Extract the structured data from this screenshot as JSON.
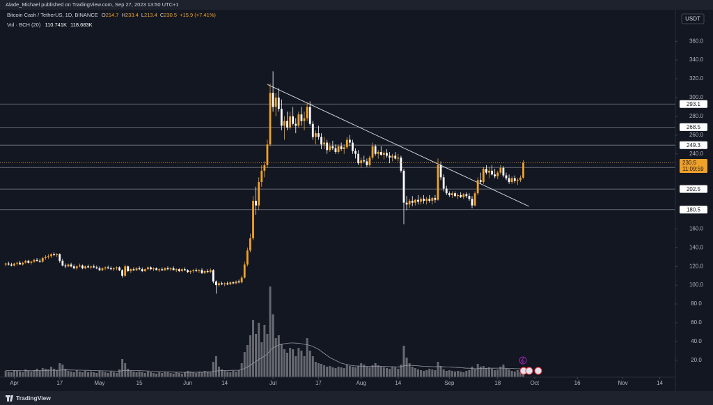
{
  "page": {
    "publisher_line": "Alade_Michael published on TradingView.com, Sep 27, 2023 13:50 UTC+1",
    "brand": "TradingView",
    "currency": "USDT"
  },
  "chart_data": {
    "type": "candlestick",
    "legend": {
      "symbol": "Bitcoin Cash / TetherUS, 1D, BINANCE",
      "ohlc_letters": [
        "O",
        "H",
        "L",
        "C"
      ],
      "change": "+15.9 (+7.41%)",
      "volume_title": "Vol · BCH (20)",
      "volume_label": "110.741K",
      "volume_ma_label": "118.683K"
    },
    "up_color": "#f0a12a",
    "down_color": "#ffffff",
    "volume_up_color": "rgba(170,170,175,0.55)",
    "volume_down_color": "rgba(210,210,215,0.45)",
    "ma_color": "#9598a1",
    "level_color": "#787b86",
    "trendline_color": "#d1d4dc",
    "xlim": [
      -2,
      235
    ],
    "ylim": [
      2,
      404
    ],
    "volume_lim": [
      0,
      1400
    ],
    "xticks": [
      {
        "value": 3,
        "label": "Apr"
      },
      {
        "value": 19,
        "label": "17"
      },
      {
        "value": 33,
        "label": "May"
      },
      {
        "value": 47,
        "label": "15"
      },
      {
        "value": 64,
        "label": "Jun"
      },
      {
        "value": 77,
        "label": "14"
      },
      {
        "value": 94,
        "label": "Jul"
      },
      {
        "value": 110,
        "label": "17"
      },
      {
        "value": 125,
        "label": "Aug"
      },
      {
        "value": 138,
        "label": "14"
      },
      {
        "value": 156,
        "label": "Sep"
      },
      {
        "value": 173,
        "label": "18"
      },
      {
        "value": 186,
        "label": "Oct"
      },
      {
        "value": 201,
        "label": "16"
      },
      {
        "value": 217,
        "label": "Nov"
      },
      {
        "value": 230,
        "label": "14"
      }
    ],
    "yticks": [
      {
        "value": 20,
        "label": "20.0"
      },
      {
        "value": 40,
        "label": "40.0"
      },
      {
        "value": 60,
        "label": "60.0"
      },
      {
        "value": 80,
        "label": "80.0"
      },
      {
        "value": 100,
        "label": "100.0"
      },
      {
        "value": 120,
        "label": "120.0"
      },
      {
        "value": 140,
        "label": "140.0"
      },
      {
        "value": 160,
        "label": "160.0"
      },
      {
        "value": 240,
        "label": "240.0"
      },
      {
        "value": 260,
        "label": "260.0"
      },
      {
        "value": 280,
        "label": "280.0"
      },
      {
        "value": 300,
        "label": "300.0"
      },
      {
        "value": 320,
        "label": "320.0"
      },
      {
        "value": 340,
        "label": "340.0"
      },
      {
        "value": 360,
        "label": "360.0"
      }
    ],
    "levels": [
      293.1,
      268.5,
      249.3,
      225.5,
      202.5,
      180.5
    ],
    "countdown": "11:09:59",
    "trendline": {
      "x": [
        92,
        184
      ],
      "y": [
        314,
        184
      ]
    },
    "candles": [
      [
        122,
        124,
        120,
        123
      ],
      [
        123,
        125,
        121,
        122
      ],
      [
        122,
        124,
        120,
        121
      ],
      [
        121,
        124,
        120,
        123
      ],
      [
        123,
        125,
        121,
        124
      ],
      [
        124,
        126,
        122,
        122
      ],
      [
        122,
        125,
        121,
        124
      ],
      [
        124,
        127,
        123,
        126
      ],
      [
        126,
        127,
        123,
        124
      ],
      [
        124,
        126,
        122,
        125
      ],
      [
        125,
        128,
        124,
        127
      ],
      [
        127,
        129,
        125,
        126
      ],
      [
        126,
        128,
        124,
        125
      ],
      [
        125,
        130,
        124,
        129
      ],
      [
        129,
        132,
        127,
        130
      ],
      [
        130,
        133,
        128,
        131
      ],
      [
        131,
        134,
        129,
        133
      ],
      [
        133,
        135,
        131,
        132
      ],
      [
        132,
        134,
        130,
        133
      ],
      [
        133,
        134,
        124,
        126
      ],
      [
        126,
        128,
        120,
        121
      ],
      [
        121,
        123,
        118,
        120
      ],
      [
        120,
        123,
        119,
        122
      ],
      [
        122,
        124,
        119,
        120
      ],
      [
        120,
        122,
        117,
        118
      ],
      [
        118,
        121,
        116,
        120
      ],
      [
        120,
        123,
        119,
        121
      ],
      [
        121,
        122,
        117,
        118
      ],
      [
        118,
        121,
        117,
        120
      ],
      [
        120,
        122,
        118,
        119
      ],
      [
        119,
        121,
        117,
        120
      ],
      [
        120,
        122,
        118,
        119
      ],
      [
        119,
        121,
        117,
        118
      ],
      [
        118,
        120,
        115,
        116
      ],
      [
        116,
        119,
        115,
        118
      ],
      [
        118,
        120,
        116,
        119
      ],
      [
        119,
        121,
        117,
        118
      ],
      [
        118,
        120,
        116,
        117
      ],
      [
        117,
        119,
        115,
        118
      ],
      [
        118,
        120,
        116,
        119
      ],
      [
        119,
        120,
        115,
        116
      ],
      [
        116,
        117,
        108,
        110
      ],
      [
        110,
        122,
        109,
        120
      ],
      [
        120,
        121,
        114,
        115
      ],
      [
        115,
        118,
        113,
        117
      ],
      [
        117,
        119,
        115,
        116
      ],
      [
        116,
        119,
        115,
        118
      ],
      [
        118,
        120,
        116,
        117
      ],
      [
        117,
        119,
        114,
        115
      ],
      [
        115,
        118,
        114,
        117
      ],
      [
        117,
        120,
        116,
        119
      ],
      [
        119,
        120,
        116,
        117
      ],
      [
        117,
        119,
        115,
        118
      ],
      [
        118,
        119,
        116,
        116
      ],
      [
        116,
        118,
        114,
        117
      ],
      [
        117,
        119,
        115,
        116
      ],
      [
        116,
        119,
        115,
        118
      ],
      [
        118,
        120,
        116,
        117
      ],
      [
        117,
        119,
        115,
        118
      ],
      [
        118,
        120,
        116,
        116
      ],
      [
        116,
        118,
        114,
        117
      ],
      [
        117,
        118,
        114,
        115
      ],
      [
        115,
        118,
        114,
        117
      ],
      [
        117,
        119,
        115,
        116
      ],
      [
        116,
        117,
        113,
        114
      ],
      [
        114,
        116,
        112,
        115
      ],
      [
        115,
        117,
        113,
        116
      ],
      [
        116,
        118,
        114,
        115
      ],
      [
        115,
        117,
        113,
        116
      ],
      [
        116,
        118,
        112,
        113
      ],
      [
        113,
        116,
        112,
        115
      ],
      [
        115,
        117,
        113,
        114
      ],
      [
        114,
        118,
        113,
        116
      ],
      [
        116,
        117,
        102,
        104
      ],
      [
        104,
        105,
        91,
        100
      ],
      [
        100,
        104,
        98,
        102
      ],
      [
        102,
        104,
        100,
        101
      ],
      [
        101,
        103,
        99,
        102
      ],
      [
        102,
        104,
        100,
        101
      ],
      [
        101,
        104,
        100,
        103
      ],
      [
        103,
        104,
        101,
        102
      ],
      [
        102,
        105,
        101,
        104
      ],
      [
        104,
        106,
        102,
        103
      ],
      [
        103,
        110,
        102,
        108
      ],
      [
        108,
        125,
        107,
        122
      ],
      [
        122,
        140,
        120,
        137
      ],
      [
        137,
        155,
        135,
        150
      ],
      [
        150,
        195,
        148,
        190
      ],
      [
        190,
        205,
        175,
        185
      ],
      [
        185,
        215,
        180,
        210
      ],
      [
        210,
        228,
        205,
        222
      ],
      [
        222,
        232,
        215,
        228
      ],
      [
        228,
        255,
        225,
        250
      ],
      [
        250,
        315,
        248,
        305
      ],
      [
        305,
        328,
        285,
        290
      ],
      [
        290,
        305,
        280,
        300
      ],
      [
        300,
        310,
        285,
        288
      ],
      [
        288,
        298,
        265,
        270
      ],
      [
        270,
        280,
        255,
        275
      ],
      [
        275,
        285,
        265,
        268
      ],
      [
        268,
        285,
        266,
        280
      ],
      [
        280,
        290,
        270,
        272
      ],
      [
        272,
        278,
        262,
        270
      ],
      [
        270,
        285,
        268,
        282
      ],
      [
        282,
        290,
        270,
        275
      ],
      [
        275,
        285,
        265,
        278
      ],
      [
        278,
        295,
        275,
        290
      ],
      [
        290,
        296,
        270,
        272
      ],
      [
        272,
        275,
        255,
        258
      ],
      [
        258,
        265,
        250,
        262
      ],
      [
        262,
        270,
        255,
        258
      ],
      [
        258,
        262,
        245,
        250
      ],
      [
        250,
        258,
        245,
        252
      ],
      [
        252,
        255,
        240,
        244
      ],
      [
        244,
        252,
        242,
        248
      ],
      [
        248,
        254,
        244,
        246
      ],
      [
        246,
        250,
        240,
        242
      ],
      [
        242,
        250,
        240,
        248
      ],
      [
        248,
        252,
        243,
        245
      ],
      [
        245,
        250,
        240,
        247
      ],
      [
        247,
        258,
        245,
        255
      ],
      [
        255,
        260,
        248,
        252
      ],
      [
        252,
        255,
        240,
        243
      ],
      [
        243,
        246,
        235,
        240
      ],
      [
        240,
        244,
        228,
        230
      ],
      [
        230,
        236,
        225,
        233
      ],
      [
        233,
        238,
        230,
        232
      ],
      [
        232,
        235,
        226,
        228
      ],
      [
        228,
        238,
        226,
        236
      ],
      [
        236,
        252,
        234,
        248
      ],
      [
        248,
        250,
        238,
        240
      ],
      [
        240,
        244,
        235,
        242
      ],
      [
        242,
        248,
        238,
        239
      ],
      [
        239,
        243,
        234,
        241
      ],
      [
        241,
        245,
        236,
        238
      ],
      [
        238,
        242,
        230,
        236
      ],
      [
        236,
        240,
        232,
        238
      ],
      [
        238,
        242,
        234,
        235
      ],
      [
        235,
        240,
        232,
        236
      ],
      [
        236,
        238,
        220,
        222
      ],
      [
        222,
        224,
        165,
        188
      ],
      [
        188,
        195,
        180,
        186
      ],
      [
        186,
        192,
        182,
        190
      ],
      [
        190,
        195,
        184,
        188
      ],
      [
        188,
        192,
        185,
        191
      ],
      [
        191,
        196,
        186,
        189
      ],
      [
        189,
        194,
        186,
        192
      ],
      [
        192,
        196,
        187,
        190
      ],
      [
        190,
        194,
        186,
        192
      ],
      [
        192,
        196,
        188,
        190
      ],
      [
        190,
        194,
        186,
        193
      ],
      [
        193,
        196,
        188,
        191
      ],
      [
        191,
        235,
        190,
        228
      ],
      [
        228,
        232,
        212,
        215
      ],
      [
        215,
        218,
        200,
        203
      ],
      [
        203,
        206,
        196,
        198
      ],
      [
        198,
        200,
        194,
        196
      ],
      [
        196,
        200,
        193,
        198
      ],
      [
        198,
        200,
        194,
        195
      ],
      [
        195,
        198,
        192,
        196
      ],
      [
        196,
        199,
        193,
        194
      ],
      [
        194,
        198,
        192,
        197
      ],
      [
        197,
        199,
        193,
        195
      ],
      [
        195,
        198,
        190,
        192
      ],
      [
        192,
        195,
        182,
        185
      ],
      [
        185,
        200,
        184,
        198
      ],
      [
        198,
        215,
        196,
        212
      ],
      [
        212,
        220,
        208,
        210
      ],
      [
        210,
        226,
        208,
        224
      ],
      [
        224,
        228,
        218,
        220
      ],
      [
        220,
        226,
        214,
        222
      ],
      [
        222,
        228,
        217,
        218
      ],
      [
        218,
        224,
        214,
        216
      ],
      [
        216,
        222,
        213,
        220
      ],
      [
        220,
        228,
        218,
        225
      ],
      [
        225,
        227,
        215,
        217
      ],
      [
        217,
        220,
        212,
        214
      ],
      [
        214,
        218,
        208,
        210
      ],
      [
        210,
        216,
        208,
        214
      ],
      [
        214,
        217,
        209,
        211
      ],
      [
        211,
        214,
        207,
        212
      ],
      [
        212,
        217,
        210,
        214.7
      ],
      [
        214.7,
        233.4,
        213.4,
        230.5
      ]
    ],
    "volumes": [
      90,
      80,
      70,
      100,
      90,
      80,
      70,
      110,
      90,
      80,
      100,
      120,
      90,
      130,
      120,
      110,
      150,
      120,
      100,
      200,
      180,
      120,
      90,
      80,
      70,
      100,
      80,
      70,
      90,
      70,
      80,
      70,
      60,
      90,
      80,
      70,
      60,
      80,
      70,
      60,
      110,
      260,
      200,
      120,
      90,
      80,
      70,
      80,
      70,
      60,
      80,
      70,
      60,
      50,
      70,
      60,
      80,
      70,
      60,
      50,
      70,
      60,
      50,
      70,
      90,
      80,
      70,
      60,
      80,
      70,
      90,
      80,
      70,
      220,
      300,
      150,
      110,
      90,
      80,
      70,
      90,
      80,
      100,
      200,
      360,
      460,
      600,
      820,
      620,
      780,
      500,
      750,
      620,
      1300,
      900,
      560,
      600,
      480,
      400,
      350,
      420,
      400,
      300,
      420,
      380,
      300,
      560,
      380,
      300,
      220,
      200,
      190,
      170,
      150,
      160,
      140,
      130,
      150,
      140,
      130,
      180,
      160,
      150,
      140,
      160,
      200,
      180,
      150,
      140,
      170,
      200,
      170,
      150,
      140,
      130,
      120,
      150,
      140,
      120,
      180,
      450,
      280,
      200,
      150,
      130,
      110,
      100,
      90,
      100,
      120,
      110,
      100,
      220,
      160,
      110,
      90,
      100,
      90,
      80,
      90,
      80,
      70,
      90,
      100,
      150,
      120,
      190,
      150,
      160,
      130,
      140,
      120,
      100,
      110,
      150,
      180,
      120,
      110,
      90,
      80,
      100,
      70,
      110.741
    ],
    "volume_ma": [
      95,
      95,
      94,
      94,
      93,
      93,
      92,
      93,
      93,
      92,
      93,
      94,
      95,
      96,
      97,
      98,
      99,
      99,
      99,
      100,
      103,
      104,
      103,
      102,
      101,
      100,
      100,
      99,
      98,
      97,
      96,
      95,
      93,
      92,
      91,
      90,
      89,
      88,
      87,
      86,
      86,
      92,
      96,
      97,
      96,
      95,
      94,
      93,
      92,
      90,
      88,
      86,
      84,
      82,
      80,
      78,
      76,
      75,
      74,
      72,
      71,
      70,
      70,
      69,
      70,
      70,
      70,
      70,
      71,
      71,
      72,
      73,
      73,
      80,
      88,
      92,
      94,
      95,
      96,
      97,
      98,
      99,
      100,
      110,
      125,
      145,
      170,
      200,
      225,
      255,
      275,
      305,
      330,
      385,
      420,
      440,
      460,
      470,
      480,
      485,
      490,
      490,
      488,
      485,
      480,
      470,
      465,
      455,
      440,
      420,
      400,
      370,
      340,
      310,
      280,
      260,
      240,
      220,
      200,
      190,
      180,
      170,
      165,
      160,
      160,
      158,
      156,
      155,
      155,
      156,
      157,
      156,
      155,
      154,
      152,
      150,
      150,
      148,
      147,
      148,
      163,
      168,
      170,
      168,
      165,
      162,
      158,
      156,
      154,
      152,
      150,
      148,
      152,
      150,
      148,
      145,
      144,
      142,
      140,
      138,
      136,
      132,
      128,
      128,
      125,
      120,
      122,
      124,
      126,
      127,
      128,
      128,
      128,
      129,
      130,
      129,
      127,
      125,
      124,
      122,
      121,
      120,
      118.683
    ]
  }
}
